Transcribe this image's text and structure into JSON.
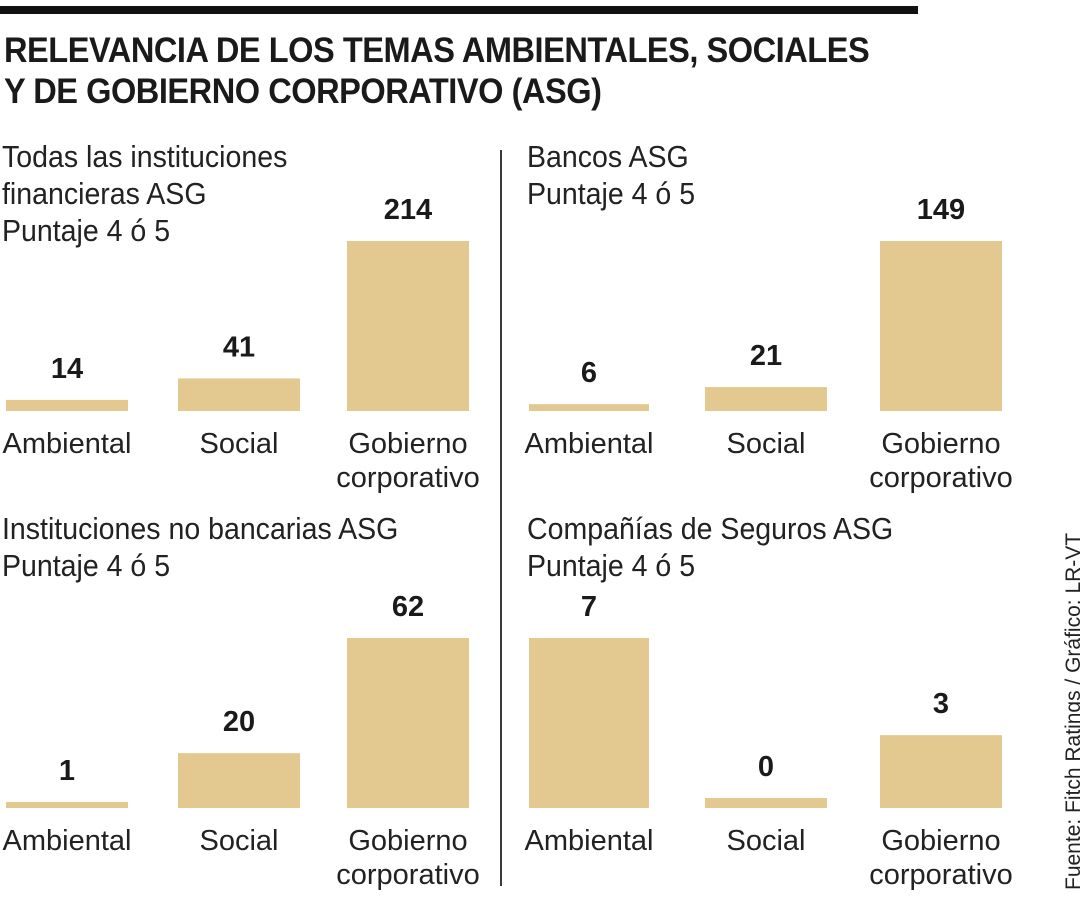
{
  "title_lines": [
    "RELEVANCIA DE LOS TEMAS AMBIENTALES, SOCIALES",
    "Y DE GOBIERNO CORPORATIVO (ASG)"
  ],
  "source": "Fuente: Fitch Ratings / Gráfico: LR-VT",
  "colors": {
    "bar": "#e3c88f",
    "text": "#1a1a1a"
  },
  "chart_data": [
    {
      "type": "bar",
      "title_lines": [
        "Todas las instituciones",
        "financieras ASG",
        "Puntaje 4 ó 5"
      ],
      "categories": [
        [
          "Ambiental"
        ],
        [
          "Social"
        ],
        [
          "Gobierno",
          "corporativo"
        ]
      ],
      "values": [
        14,
        41,
        214
      ],
      "ylim": [
        0,
        214
      ]
    },
    {
      "type": "bar",
      "title_lines": [
        "Bancos ASG",
        "Puntaje 4 ó 5"
      ],
      "categories": [
        [
          "Ambiental"
        ],
        [
          "Social"
        ],
        [
          "Gobierno",
          "corporativo"
        ]
      ],
      "values": [
        6,
        21,
        149
      ],
      "ylim": [
        0,
        149
      ]
    },
    {
      "type": "bar",
      "title_lines": [
        "Instituciones no bancarias ASG",
        " Puntaje 4 ó 5"
      ],
      "categories": [
        [
          "Ambiental"
        ],
        [
          "Social"
        ],
        [
          "Gobierno",
          "corporativo"
        ]
      ],
      "values": [
        1,
        20,
        62
      ],
      "ylim": [
        0,
        62
      ]
    },
    {
      "type": "bar",
      "title_lines": [
        "Compañías de Seguros ASG",
        "Puntaje 4 ó 5"
      ],
      "categories": [
        [
          "Ambiental"
        ],
        [
          "Social"
        ],
        [
          "Gobierno",
          "corporativo"
        ]
      ],
      "values": [
        7,
        0,
        3
      ],
      "ylim": [
        0,
        7
      ]
    }
  ]
}
